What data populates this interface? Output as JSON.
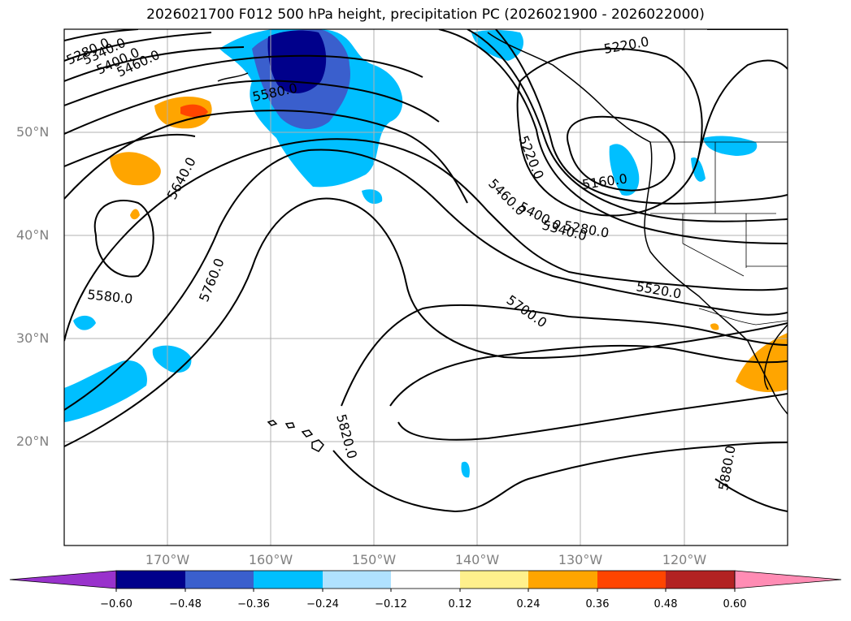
{
  "title": "2026021700 F012 500 hPa height, precipitation PC (2026021900 - 2026022000)",
  "lat_labels": [
    "50°N",
    "40°N",
    "30°N",
    "20°N"
  ],
  "lon_labels": [
    "170°W",
    "160°W",
    "150°W",
    "140°W",
    "130°W",
    "120°W"
  ],
  "contour_labels": [
    "5280.0",
    "5340.0",
    "5400.0",
    "5460.0",
    "5580.0",
    "5640.0",
    "5760.0",
    "5580.0",
    "5820.0",
    "5700.0",
    "5220.0",
    "5220.0",
    "5160.0",
    "5460.0",
    "5400.0",
    "5340.0",
    "5280.0",
    "5520.0",
    "5880.0"
  ],
  "colorbar": {
    "ticks": [
      "−0.60",
      "−0.48",
      "−0.36",
      "−0.24",
      "−0.12",
      "0.12",
      "0.24",
      "0.36",
      "0.48",
      "0.60"
    ],
    "colors": [
      "#9932cc",
      "#00008b",
      "#3a5fcd",
      "#00bfff",
      "#b0e2ff",
      "#ffffff",
      "#fff08c",
      "#ffa500",
      "#ff4500",
      "#b22222",
      "#ff8cb4"
    ]
  }
}
